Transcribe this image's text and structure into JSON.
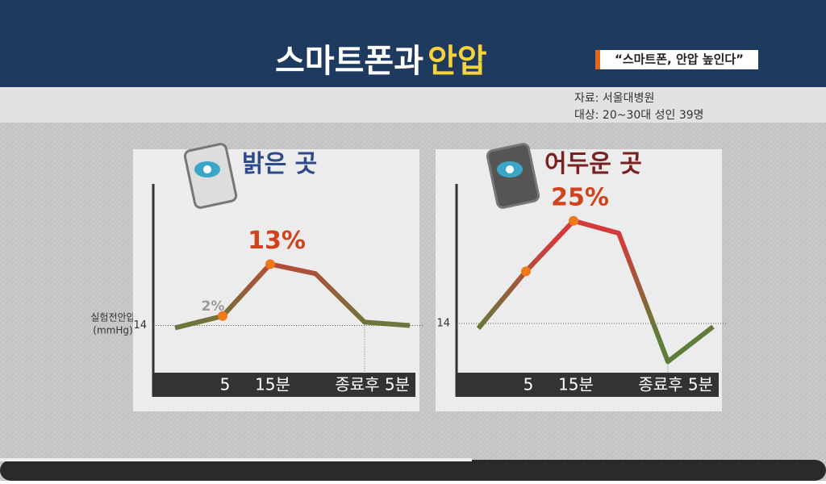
{
  "header": {
    "title": "스마트폰과",
    "title_highlight": "안압",
    "badge": "“스마트폰, 안압 높인다”",
    "source": "자료: 서울대병원",
    "subjects": "대상: 20~30대 성인 39명",
    "y_label": "실험전안압",
    "y_unit": "(mmHg)"
  },
  "chart_data": [
    {
      "type": "line",
      "title": "밝은 곳",
      "categories": [
        null,
        "5",
        "15분",
        null,
        null,
        "종료후 5분"
      ],
      "values": [
        -0.5,
        2,
        13,
        11,
        0.7,
        0
      ],
      "value_labels": [
        null,
        "2%",
        "13%",
        null,
        null,
        null
      ],
      "ylim": [
        -10,
        30
      ],
      "yticks": [
        {
          "value": 0,
          "label": "14"
        }
      ]
    },
    {
      "type": "line",
      "title": "어두운 곳",
      "categories": [
        null,
        "5",
        "15분",
        null,
        null,
        "종료후 5분"
      ],
      "values": [
        -1.2,
        12.7,
        25,
        22,
        -9.3,
        -0.8
      ],
      "value_labels": [
        null,
        null,
        "25%",
        null,
        null,
        null
      ],
      "ylim": [
        -12,
        34
      ],
      "yticks": [
        {
          "value": 0,
          "label": "14"
        }
      ]
    }
  ]
}
